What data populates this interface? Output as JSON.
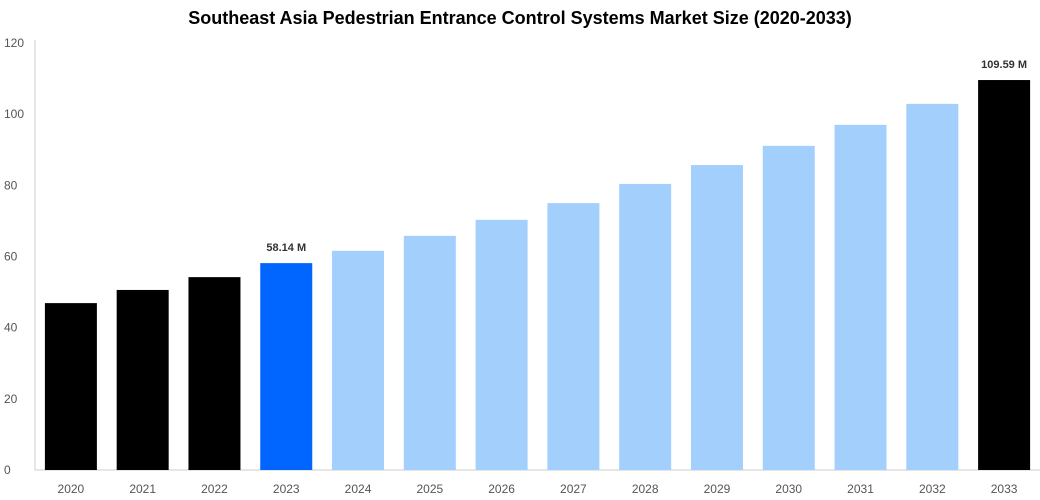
{
  "chart_data": {
    "type": "bar",
    "title": "Southeast Asia Pedestrian Entrance Control Systems Market Size (2020-2033)",
    "xlabel": "",
    "ylabel": "",
    "categories": [
      "2020",
      "2021",
      "2022",
      "2023",
      "2024",
      "2025",
      "2026",
      "2027",
      "2028",
      "2029",
      "2030",
      "2031",
      "2032",
      "2033"
    ],
    "values": [
      46.9,
      50.6,
      54.2,
      58.14,
      61.6,
      65.8,
      70.3,
      75.0,
      80.4,
      85.7,
      91.1,
      97.0,
      102.9,
      109.59
    ],
    "colors": [
      "#000000",
      "#000000",
      "#000000",
      "#0066ff",
      "#a3cffd",
      "#a3cffd",
      "#a3cffd",
      "#a3cffd",
      "#a3cffd",
      "#a3cffd",
      "#a3cffd",
      "#a3cffd",
      "#a3cffd",
      "#000000"
    ],
    "data_labels": {
      "3": "58.14 M",
      "13": "109.59 M"
    },
    "ylim": [
      0,
      120
    ],
    "yticks": [
      0,
      20,
      40,
      60,
      80,
      100,
      120
    ],
    "grid": false,
    "legend": "none"
  }
}
